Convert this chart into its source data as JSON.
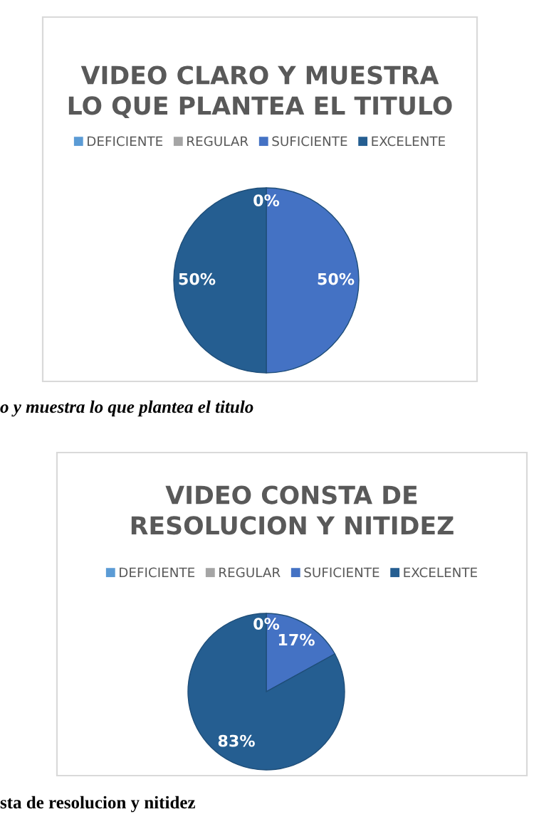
{
  "chart_data": [
    {
      "type": "pie",
      "title": "VIDEO CLARO Y MUESTRA\nLO QUE PLANTEA EL TITULO",
      "categories": [
        "DEFICIENTE",
        "REGULAR",
        "SUFICIENTE",
        "EXCELENTE"
      ],
      "values": [
        0,
        0,
        50,
        50
      ],
      "colors": [
        "#5b9bd5",
        "#a5a5a5",
        "#4472c4",
        "#255e91"
      ],
      "value_labels": [
        null,
        "0%",
        "50%",
        "50%"
      ],
      "legend": "top",
      "annotations": [
        "o y muestra lo que plantea el titulo"
      ]
    },
    {
      "type": "pie",
      "title": "VIDEO CONSTA DE\nRESOLUCION Y NITIDEZ",
      "categories": [
        "DEFICIENTE",
        "REGULAR",
        "SUFICIENTE",
        "EXCELENTE"
      ],
      "values": [
        0,
        0,
        17,
        83
      ],
      "colors": [
        "#5b9bd5",
        "#a5a5a5",
        "#4472c4",
        "#255e91"
      ],
      "value_labels": [
        null,
        "0%",
        "17%",
        "83%"
      ],
      "legend": "top",
      "annotations": [
        "sta de resolucion y nitidez"
      ]
    }
  ]
}
